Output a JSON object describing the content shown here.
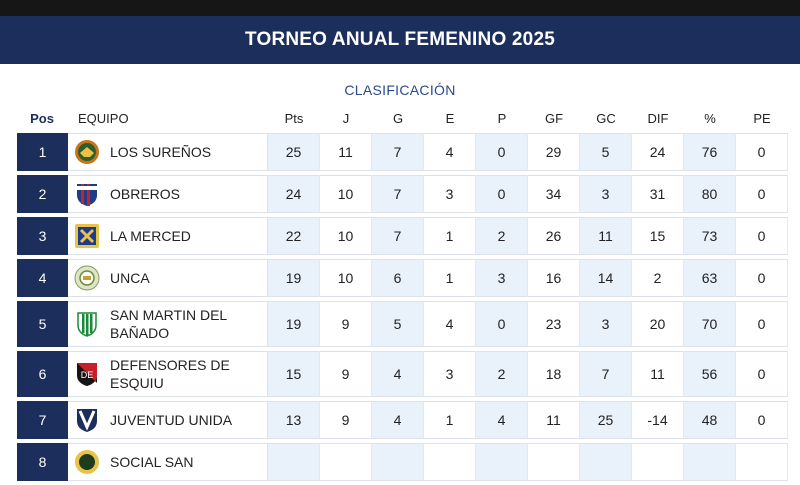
{
  "header": {
    "title": "TORNEO ANUAL FEMENINO 2025",
    "subtitle": "CLASIFICACIÓN"
  },
  "columns": {
    "pos": "Pos",
    "team": "EQUIPO",
    "pts": "Pts",
    "j": "J",
    "g": "G",
    "e": "E",
    "p": "P",
    "gf": "GF",
    "gc": "GC",
    "dif": "DIF",
    "pct": "%",
    "pe": "PE"
  },
  "colors": {
    "navy": "#1c2e5c",
    "shade": "#e9f1fb"
  },
  "rows": [
    {
      "pos": "1",
      "team": "LOS SUREÑOS",
      "logo": "los-surenos-crest-icon",
      "pts": "25",
      "j": "11",
      "g": "7",
      "e": "4",
      "p": "0",
      "gf": "29",
      "gc": "5",
      "dif": "24",
      "pct": "76",
      "pe": "0"
    },
    {
      "pos": "2",
      "team": "OBREROS",
      "logo": "obreros-crest-icon",
      "pts": "24",
      "j": "10",
      "g": "7",
      "e": "3",
      "p": "0",
      "gf": "34",
      "gc": "3",
      "dif": "31",
      "pct": "80",
      "pe": "0"
    },
    {
      "pos": "3",
      "team": "LA MERCED",
      "logo": "la-merced-crest-icon",
      "pts": "22",
      "j": "10",
      "g": "7",
      "e": "1",
      "p": "2",
      "gf": "26",
      "gc": "11",
      "dif": "15",
      "pct": "73",
      "pe": "0"
    },
    {
      "pos": "4",
      "team": "UNCA",
      "logo": "unca-crest-icon",
      "pts": "19",
      "j": "10",
      "g": "6",
      "e": "1",
      "p": "3",
      "gf": "16",
      "gc": "14",
      "dif": "2",
      "pct": "63",
      "pe": "0"
    },
    {
      "pos": "5",
      "team": "SAN MARTIN DEL BAÑADO",
      "logo": "san-martin-crest-icon",
      "pts": "19",
      "j": "9",
      "g": "5",
      "e": "4",
      "p": "0",
      "gf": "23",
      "gc": "3",
      "dif": "20",
      "pct": "70",
      "pe": "0"
    },
    {
      "pos": "6",
      "team": "DEFENSORES DE ESQUIU",
      "logo": "defensores-crest-icon",
      "pts": "15",
      "j": "9",
      "g": "4",
      "e": "3",
      "p": "2",
      "gf": "18",
      "gc": "7",
      "dif": "11",
      "pct": "56",
      "pe": "0"
    },
    {
      "pos": "7",
      "team": "JUVENTUD UNIDA",
      "logo": "juventud-unida-crest-icon",
      "pts": "13",
      "j": "9",
      "g": "4",
      "e": "1",
      "p": "4",
      "gf": "11",
      "gc": "25",
      "dif": "-14",
      "pct": "48",
      "pe": "0"
    },
    {
      "pos": "8",
      "team": "SOCIAL SAN",
      "logo": "social-san-crest-icon",
      "pts": "",
      "j": "",
      "g": "",
      "e": "",
      "p": "",
      "gf": "",
      "gc": "",
      "dif": "",
      "pct": "",
      "pe": ""
    }
  ]
}
